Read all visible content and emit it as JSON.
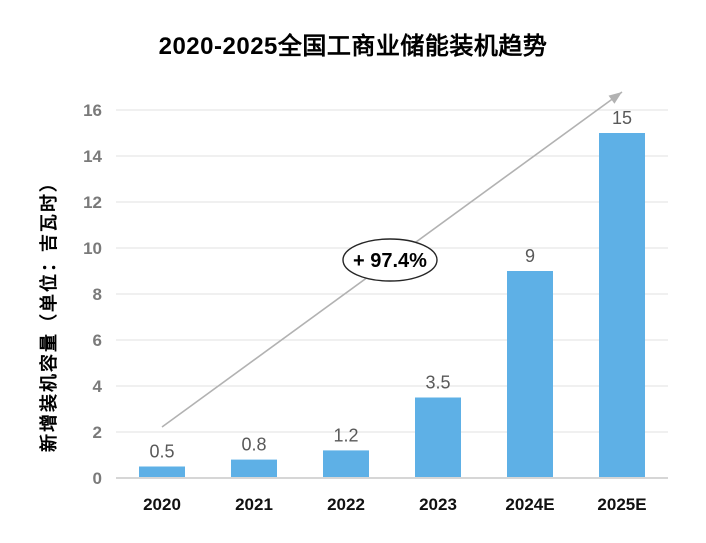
{
  "chart_data": {
    "type": "bar",
    "title": "2020-2025全国工商业储能装机趋势",
    "ylabel": "新增装机容量（单位：吉瓦时）",
    "xlabel": "",
    "categories": [
      "2020",
      "2021",
      "2022",
      "2023",
      "2024E",
      "2025E"
    ],
    "values": [
      0.5,
      0.8,
      1.2,
      3.5,
      9,
      15
    ],
    "value_labels": [
      "0.5",
      "0.8",
      "1.2",
      "3.5",
      "9",
      "15"
    ],
    "ylim": [
      0,
      16
    ],
    "yticks": [
      0,
      2,
      4,
      6,
      8,
      10,
      12,
      14,
      16
    ],
    "grid": true,
    "legend": "none",
    "annotation": {
      "text": "+ 97.4%",
      "meaning": "growth-rate-callout"
    },
    "trend_arrow": true,
    "colors": {
      "bar": "#5EB0E6",
      "gridline": "#e1e1e1",
      "axis_line": "#d6d6d6",
      "arrow": "#b2b2b2",
      "y_tick_label": "#7a7a7a",
      "x_tick_label": "#111111",
      "value_label": "#595959",
      "annotation_stroke": "#262626",
      "annotation_fill": "#ffffff",
      "annotation_text": "#000000",
      "title": "#000000"
    }
  }
}
